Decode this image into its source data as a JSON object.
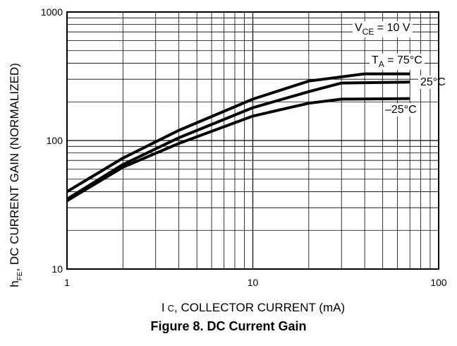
{
  "chart_data": {
    "type": "line",
    "xscale": "log",
    "yscale": "log",
    "xlim": [
      1,
      100
    ],
    "ylim": [
      10,
      1000
    ],
    "grid": true,
    "xlabel_main": "I",
    "xlabel_sub": "C",
    "xlabel_rest": ", COLLECTOR CURRENT (mA)",
    "ylabel_main": "h",
    "ylabel_sub": "FE",
    "ylabel_rest": ", DC CURRENT GAIN (NORMALIZED)",
    "xticks": [
      {
        "value": 1,
        "label": "1"
      },
      {
        "value": 10,
        "label": "10"
      },
      {
        "value": 100,
        "label": "100"
      }
    ],
    "yticks": [
      {
        "value": 10,
        "label": "10"
      },
      {
        "value": 100,
        "label": "100"
      },
      {
        "value": 1000,
        "label": "1000"
      }
    ],
    "condition": {
      "main": "V",
      "sub": "CE",
      "rest": " = 10 V"
    },
    "series": [
      {
        "name_main": "T",
        "name_sub": "A",
        "name_rest": " = 75°C",
        "x": [
          1,
          2,
          4,
          10,
          20,
          40,
          70
        ],
        "y": [
          40,
          73,
          120,
          210,
          290,
          330,
          330
        ]
      },
      {
        "name_main": "",
        "name_sub": "",
        "name_rest": "25°C",
        "x": [
          1,
          2,
          4,
          10,
          20,
          30,
          70
        ],
        "y": [
          35,
          65,
          105,
          180,
          240,
          280,
          285
        ]
      },
      {
        "name_main": "",
        "name_sub": "",
        "name_rest": "–25°C",
        "x": [
          1,
          2,
          4,
          10,
          20,
          30,
          70
        ],
        "y": [
          34,
          62,
          95,
          155,
          195,
          210,
          212
        ]
      }
    ],
    "title": "Figure 8. DC Current Gain"
  }
}
